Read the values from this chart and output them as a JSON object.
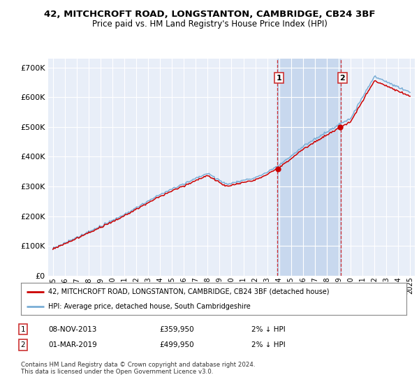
{
  "title_line1": "42, MITCHCROFT ROAD, LONGSTANTON, CAMBRIDGE, CB24 3BF",
  "title_line2": "Price paid vs. HM Land Registry's House Price Index (HPI)",
  "background_color": "#ffffff",
  "plot_background": "#e8eef8",
  "grid_color": "#ffffff",
  "hpi_color": "#7aaed6",
  "price_color": "#cc0000",
  "transaction1": {
    "date": "08-NOV-2013",
    "price": 359950,
    "label": "1",
    "rel": "2% ↓ HPI",
    "year": 2013.85
  },
  "transaction2": {
    "date": "01-MAR-2019",
    "price": 499950,
    "label": "2",
    "rel": "2% ↓ HPI",
    "year": 2019.17
  },
  "legend_label1": "42, MITCHCROFT ROAD, LONGSTANTON, CAMBRIDGE, CB24 3BF (detached house)",
  "legend_label2": "HPI: Average price, detached house, South Cambridgeshire",
  "footnote": "Contains HM Land Registry data © Crown copyright and database right 2024.\nThis data is licensed under the Open Government Licence v3.0.",
  "yticks": [
    0,
    100000,
    200000,
    300000,
    400000,
    500000,
    600000,
    700000
  ],
  "ytick_labels": [
    "£0",
    "£100K",
    "£200K",
    "£300K",
    "£400K",
    "£500K",
    "£600K",
    "£700K"
  ],
  "xstart_year": 1995,
  "xend_year": 2025,
  "shaded_color": "#c8d8ee",
  "vline_color": "#cc0000"
}
